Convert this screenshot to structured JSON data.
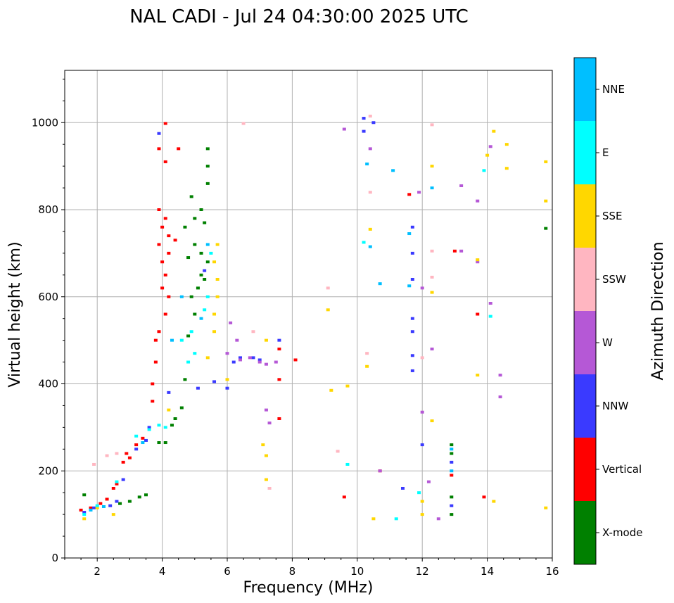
{
  "chart_data": {
    "type": "scatter",
    "title": "NAL CADI - Jul 24 04:30:00 2025 UTC",
    "xlabel": "Frequency (MHz)",
    "ylabel": "Virtual height (km)",
    "xlim": [
      1,
      16
    ],
    "ylim": [
      0,
      1120
    ],
    "x_ticks": [
      2,
      4,
      6,
      8,
      10,
      12,
      14,
      16
    ],
    "y_ticks": [
      0,
      200,
      400,
      600,
      800,
      1000
    ],
    "grid": true,
    "colorbar": {
      "title": "Azimuth Direction",
      "categories": [
        {
          "name": "X-mode",
          "color": "#008000"
        },
        {
          "name": "Vertical",
          "color": "#ff0000"
        },
        {
          "name": "NNW",
          "color": "#3a3aff"
        },
        {
          "name": "W",
          "color": "#b558d6"
        },
        {
          "name": "SSW",
          "color": "#ffb6c1"
        },
        {
          "name": "SSE",
          "color": "#ffd700"
        },
        {
          "name": "E",
          "color": "#00ffff"
        },
        {
          "name": "NNE",
          "color": "#00bfff"
        }
      ]
    },
    "series": [
      {
        "name": "X-mode",
        "points": [
          [
            1.6,
            145
          ],
          [
            2.7,
            125
          ],
          [
            3.0,
            130
          ],
          [
            3.3,
            140
          ],
          [
            3.5,
            145
          ],
          [
            3.9,
            265
          ],
          [
            4.1,
            265
          ],
          [
            4.3,
            305
          ],
          [
            4.4,
            320
          ],
          [
            4.6,
            345
          ],
          [
            4.7,
            410
          ],
          [
            4.8,
            510
          ],
          [
            5.0,
            560
          ],
          [
            4.9,
            600
          ],
          [
            5.1,
            620
          ],
          [
            5.2,
            650
          ],
          [
            5.3,
            640
          ],
          [
            4.8,
            690
          ],
          [
            5.0,
            720
          ],
          [
            5.2,
            700
          ],
          [
            5.4,
            680
          ],
          [
            4.7,
            760
          ],
          [
            5.0,
            780
          ],
          [
            5.3,
            770
          ],
          [
            5.2,
            800
          ],
          [
            4.9,
            830
          ],
          [
            5.4,
            860
          ],
          [
            5.4,
            900
          ],
          [
            5.4,
            940
          ],
          [
            15.8,
            757
          ],
          [
            12.9,
            100
          ],
          [
            12.9,
            140
          ],
          [
            12.9,
            240
          ],
          [
            12.9,
            260
          ]
        ]
      },
      {
        "name": "Vertical",
        "points": [
          [
            1.5,
            110
          ],
          [
            1.8,
            115
          ],
          [
            2.1,
            125
          ],
          [
            2.3,
            135
          ],
          [
            2.5,
            160
          ],
          [
            2.6,
            170
          ],
          [
            2.8,
            220
          ],
          [
            2.9,
            240
          ],
          [
            3.0,
            230
          ],
          [
            3.2,
            260
          ],
          [
            3.4,
            275
          ],
          [
            3.7,
            360
          ],
          [
            3.7,
            400
          ],
          [
            3.8,
            450
          ],
          [
            3.8,
            500
          ],
          [
            3.9,
            520
          ],
          [
            4.1,
            560
          ],
          [
            4.2,
            600
          ],
          [
            4.0,
            620
          ],
          [
            4.1,
            650
          ],
          [
            4.0,
            680
          ],
          [
            4.2,
            700
          ],
          [
            3.9,
            720
          ],
          [
            4.0,
            760
          ],
          [
            4.1,
            780
          ],
          [
            3.9,
            800
          ],
          [
            4.2,
            740
          ],
          [
            4.4,
            730
          ],
          [
            4.1,
            910
          ],
          [
            3.9,
            940
          ],
          [
            4.5,
            940
          ],
          [
            4.1,
            998
          ],
          [
            7.6,
            320
          ],
          [
            7.6,
            410
          ],
          [
            7.6,
            480
          ],
          [
            8.1,
            455
          ],
          [
            9.6,
            140
          ],
          [
            10.7,
            200
          ],
          [
            11.6,
            835
          ],
          [
            12.9,
            190
          ],
          [
            13.0,
            705
          ],
          [
            13.7,
            560
          ],
          [
            13.9,
            140
          ]
        ]
      },
      {
        "name": "NNW",
        "points": [
          [
            1.6,
            105
          ],
          [
            1.9,
            115
          ],
          [
            2.4,
            120
          ],
          [
            2.6,
            130
          ],
          [
            2.8,
            180
          ],
          [
            3.2,
            250
          ],
          [
            3.5,
            270
          ],
          [
            3.6,
            300
          ],
          [
            3.9,
            975
          ],
          [
            4.2,
            380
          ],
          [
            5.1,
            390
          ],
          [
            5.3,
            660
          ],
          [
            5.6,
            405
          ],
          [
            6.0,
            390
          ],
          [
            6.2,
            450
          ],
          [
            6.4,
            460
          ],
          [
            6.8,
            460
          ],
          [
            7.0,
            455
          ],
          [
            7.6,
            500
          ],
          [
            10.2,
            1010
          ],
          [
            10.2,
            980
          ],
          [
            10.5,
            1000
          ],
          [
            11.4,
            160
          ],
          [
            12.0,
            260
          ],
          [
            11.7,
            430
          ],
          [
            11.7,
            465
          ],
          [
            11.7,
            520
          ],
          [
            11.7,
            550
          ],
          [
            11.7,
            640
          ],
          [
            11.7,
            700
          ],
          [
            11.7,
            760
          ],
          [
            12.9,
            120
          ],
          [
            12.9,
            220
          ]
        ]
      },
      {
        "name": "W",
        "points": [
          [
            6.1,
            540
          ],
          [
            6.3,
            500
          ],
          [
            6.0,
            470
          ],
          [
            6.4,
            455
          ],
          [
            6.7,
            460
          ],
          [
            7.0,
            450
          ],
          [
            7.2,
            445
          ],
          [
            7.2,
            340
          ],
          [
            7.3,
            310
          ],
          [
            7.5,
            450
          ],
          [
            9.6,
            985
          ],
          [
            10.4,
            940
          ],
          [
            10.7,
            200
          ],
          [
            11.9,
            840
          ],
          [
            12.0,
            620
          ],
          [
            12.0,
            335
          ],
          [
            12.3,
            480
          ],
          [
            12.2,
            175
          ],
          [
            12.5,
            90
          ],
          [
            13.2,
            855
          ],
          [
            13.2,
            705
          ],
          [
            13.7,
            820
          ],
          [
            13.7,
            680
          ],
          [
            14.1,
            945
          ],
          [
            14.1,
            585
          ],
          [
            14.4,
            420
          ],
          [
            14.4,
            370
          ]
        ]
      },
      {
        "name": "SSW",
        "points": [
          [
            1.9,
            215
          ],
          [
            2.3,
            235
          ],
          [
            2.6,
            240
          ],
          [
            6.5,
            998
          ],
          [
            6.8,
            520
          ],
          [
            7.3,
            160
          ],
          [
            9.1,
            620
          ],
          [
            9.4,
            245
          ],
          [
            10.4,
            840
          ],
          [
            10.4,
            1015
          ],
          [
            10.3,
            470
          ],
          [
            12.3,
            995
          ],
          [
            12.3,
            705
          ],
          [
            12.3,
            645
          ],
          [
            12.0,
            460
          ]
        ]
      },
      {
        "name": "SSE",
        "points": [
          [
            1.6,
            90
          ],
          [
            2.0,
            115
          ],
          [
            2.5,
            100
          ],
          [
            4.2,
            340
          ],
          [
            5.4,
            460
          ],
          [
            5.6,
            520
          ],
          [
            5.6,
            560
          ],
          [
            5.7,
            600
          ],
          [
            5.7,
            640
          ],
          [
            5.6,
            680
          ],
          [
            5.7,
            720
          ],
          [
            6.0,
            410
          ],
          [
            7.2,
            235
          ],
          [
            7.1,
            260
          ],
          [
            7.2,
            180
          ],
          [
            7.2,
            500
          ],
          [
            9.1,
            570
          ],
          [
            9.2,
            385
          ],
          [
            9.7,
            395
          ],
          [
            10.3,
            440
          ],
          [
            10.4,
            755
          ],
          [
            10.5,
            90
          ],
          [
            12.0,
            130
          ],
          [
            12.0,
            100
          ],
          [
            12.3,
            610
          ],
          [
            12.3,
            900
          ],
          [
            12.3,
            315
          ],
          [
            13.7,
            685
          ],
          [
            13.7,
            420
          ],
          [
            14.0,
            925
          ],
          [
            14.2,
            980
          ],
          [
            14.2,
            130
          ],
          [
            14.6,
            895
          ],
          [
            14.6,
            950
          ],
          [
            15.8,
            910
          ],
          [
            15.8,
            820
          ],
          [
            15.8,
            115
          ]
        ]
      },
      {
        "name": "E",
        "points": [
          [
            1.6,
            100
          ],
          [
            2.0,
            120
          ],
          [
            2.6,
            175
          ],
          [
            3.2,
            280
          ],
          [
            3.6,
            295
          ],
          [
            3.9,
            305
          ],
          [
            4.1,
            300
          ],
          [
            4.6,
            500
          ],
          [
            4.9,
            520
          ],
          [
            5.0,
            470
          ],
          [
            4.8,
            450
          ],
          [
            5.3,
            570
          ],
          [
            5.4,
            600
          ],
          [
            5.5,
            700
          ],
          [
            9.7,
            215
          ],
          [
            10.2,
            725
          ],
          [
            11.2,
            90
          ],
          [
            11.9,
            150
          ],
          [
            13.9,
            890
          ],
          [
            14.1,
            555
          ]
        ]
      },
      {
        "name": "NNE",
        "points": [
          [
            1.8,
            110
          ],
          [
            2.2,
            118
          ],
          [
            3.4,
            265
          ],
          [
            4.3,
            500
          ],
          [
            4.6,
            600
          ],
          [
            5.2,
            550
          ],
          [
            5.4,
            720
          ],
          [
            10.3,
            905
          ],
          [
            10.4,
            715
          ],
          [
            10.7,
            630
          ],
          [
            11.1,
            890
          ],
          [
            11.6,
            745
          ],
          [
            11.6,
            625
          ],
          [
            12.3,
            850
          ],
          [
            12.9,
            200
          ],
          [
            12.9,
            250
          ]
        ]
      }
    ]
  }
}
